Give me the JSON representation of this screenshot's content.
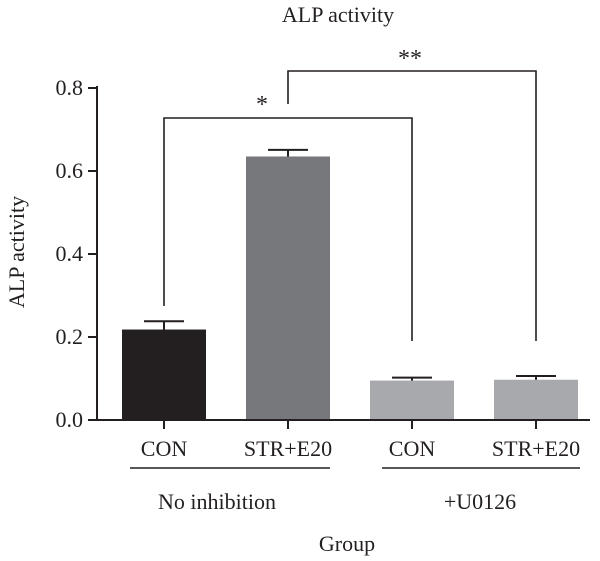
{
  "chart_data": {
    "type": "bar",
    "title": "ALP activity",
    "xlabel": "Group",
    "ylabel": "ALP activity",
    "ylim": [
      0,
      0.8
    ],
    "yticks": [
      "0.0",
      "0.2",
      "0.4",
      "0.6",
      "0.8"
    ],
    "categories": [
      "CON",
      "STR+E20",
      "CON",
      "STR+E20"
    ],
    "values": [
      0.218,
      0.635,
      0.095,
      0.097
    ],
    "errors": [
      0.02,
      0.016,
      0.007,
      0.009
    ],
    "colors": [
      "#231f20",
      "#77787b",
      "#a7a9ac",
      "#a7a9ac"
    ],
    "groups": [
      {
        "label": "No inhibition",
        "members": [
          0,
          1
        ]
      },
      {
        "label": "+U0126",
        "members": [
          2,
          3
        ]
      }
    ],
    "significance": [
      {
        "from": 0,
        "to": 2,
        "text": "*"
      },
      {
        "from": 1,
        "to": 3,
        "text": "**"
      }
    ],
    "grid": false,
    "legend": "none"
  }
}
